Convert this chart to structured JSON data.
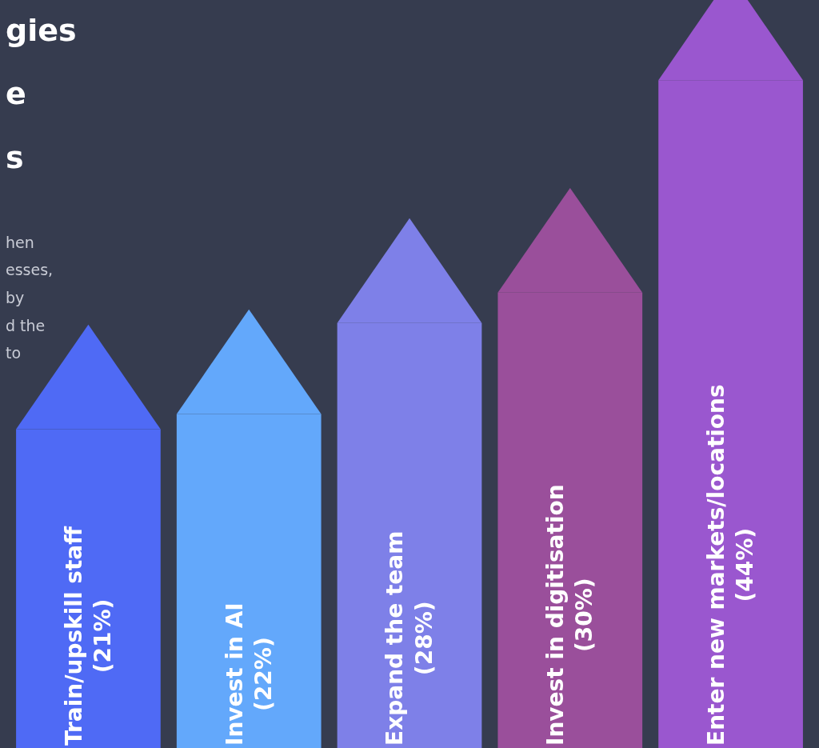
{
  "chart_data": {
    "type": "bar",
    "categories": [
      "Train/upskill staff",
      "Invest in AI",
      "Expand the team",
      "Invest in digitisation",
      "Enter new markets/locations"
    ],
    "values": [
      21,
      22,
      28,
      30,
      44
    ],
    "value_labels": [
      "(21%)",
      "(22%)",
      "(28%)",
      "(30%)",
      "(44%)"
    ],
    "colors": [
      "#4f6af5",
      "#63a8fb",
      "#7e80e8",
      "#9a4f9b",
      "#9a57cf"
    ],
    "annotations": [
      "gies",
      "e",
      "s",
      "hen",
      "esses,",
      "by",
      "d the",
      "to"
    ],
    "legend": false,
    "tick_labels": false
  }
}
